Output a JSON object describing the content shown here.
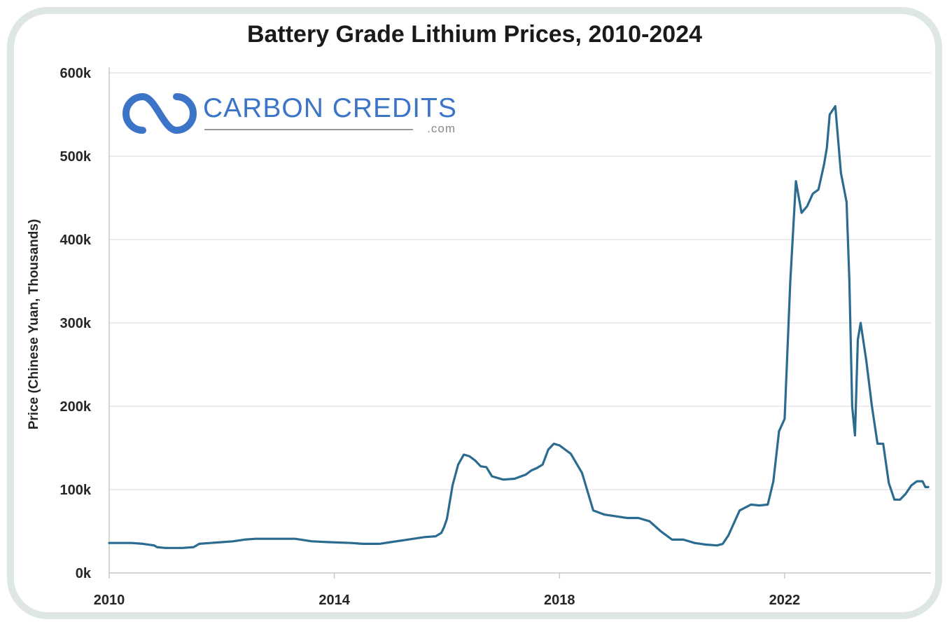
{
  "logo": {
    "name": "CARBON CREDITS",
    "suffix": ".com"
  },
  "colors": {
    "line": "#2a6b8f",
    "grid": "#e6e6e6",
    "logo": "#3c75c8",
    "frame": "#dfe7e5"
  },
  "chart_data": {
    "type": "line",
    "title": "Battery Grade Lithium Prices, 2010-2024",
    "xlabel": "",
    "ylabel": "Price (Chinese Yuan, Thousands)",
    "xlim": [
      2010,
      2024.6
    ],
    "ylim": [
      0,
      600000
    ],
    "x_ticks": [
      2010,
      2014,
      2018,
      2022
    ],
    "x_tick_labels": [
      "2010",
      "2014",
      "2018",
      "2022"
    ],
    "y_ticks": [
      0,
      100000,
      200000,
      300000,
      400000,
      500000,
      600000
    ],
    "y_tick_labels": [
      "0k",
      "100k",
      "200k",
      "300k",
      "400k",
      "500k",
      "600k"
    ],
    "grid": true,
    "series": [
      {
        "x": [
          2010.0,
          2010.4,
          2010.6,
          2010.8,
          2010.85,
          2011.0,
          2011.3,
          2011.5,
          2011.6,
          2011.8,
          2012.0,
          2012.2,
          2012.4,
          2012.6,
          2013.0,
          2013.3,
          2013.6,
          2013.9,
          2014.3,
          2014.5,
          2014.8,
          2015.0,
          2015.3,
          2015.6,
          2015.8,
          2015.9,
          2015.95,
          2016.0,
          2016.1,
          2016.2,
          2016.3,
          2016.4,
          2016.5,
          2016.6,
          2016.7,
          2016.8,
          2017.0,
          2017.2,
          2017.4,
          2017.5,
          2017.6,
          2017.7,
          2017.8,
          2017.9,
          2018.0,
          2018.2,
          2018.4,
          2018.6,
          2018.8,
          2019.0,
          2019.2,
          2019.4,
          2019.6,
          2019.8,
          2020.0,
          2020.2,
          2020.4,
          2020.6,
          2020.8,
          2020.9,
          2021.0,
          2021.2,
          2021.4,
          2021.55,
          2021.7,
          2021.8,
          2021.9,
          2022.0,
          2022.1,
          2022.2,
          2022.3,
          2022.4,
          2022.5,
          2022.6,
          2022.7,
          2022.75,
          2022.8,
          2022.9,
          2023.0,
          2023.1,
          2023.15,
          2023.2,
          2023.25,
          2023.3,
          2023.35,
          2023.45,
          2023.55,
          2023.65,
          2023.75,
          2023.85,
          2023.95,
          2024.05,
          2024.15,
          2024.25,
          2024.35,
          2024.45,
          2024.5,
          2024.55
        ],
        "y": [
          36000,
          36000,
          35000,
          33000,
          31000,
          30000,
          30000,
          31000,
          35000,
          36000,
          37000,
          38000,
          40000,
          41000,
          41000,
          41000,
          38000,
          37000,
          36000,
          35000,
          35000,
          37000,
          40000,
          43000,
          44000,
          48000,
          55000,
          65000,
          105000,
          130000,
          142000,
          140000,
          135000,
          128000,
          127000,
          116000,
          112000,
          113000,
          118000,
          123000,
          126000,
          130000,
          148000,
          155000,
          153000,
          143000,
          120000,
          75000,
          70000,
          68000,
          66000,
          66000,
          62000,
          50000,
          40000,
          40000,
          36000,
          34000,
          33000,
          35000,
          45000,
          75000,
          82000,
          81000,
          82000,
          110000,
          170000,
          185000,
          350000,
          470000,
          432000,
          440000,
          455000,
          460000,
          490000,
          510000,
          550000,
          560000,
          480000,
          445000,
          350000,
          200000,
          165000,
          280000,
          300000,
          255000,
          200000,
          155000,
          155000,
          108000,
          88000,
          88000,
          95000,
          105000,
          110000,
          110000,
          103000,
          103000
        ]
      }
    ]
  }
}
